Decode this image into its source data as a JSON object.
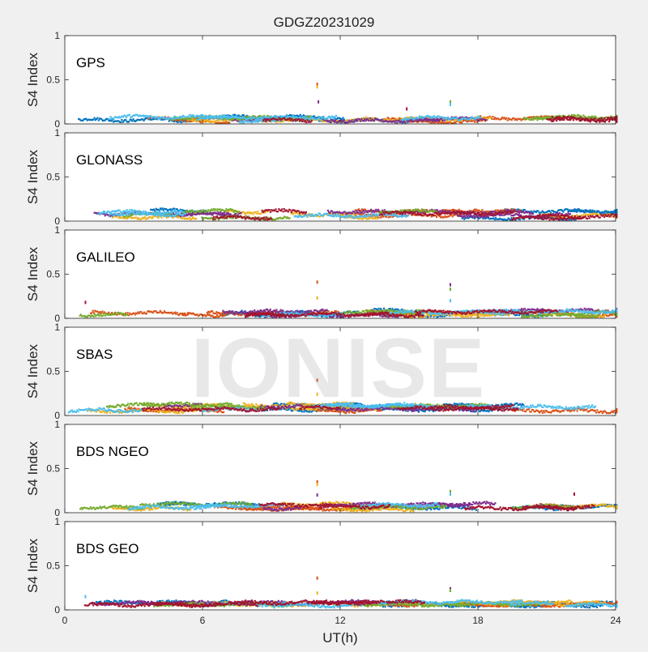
{
  "figure": {
    "title": "GDGZ20231029",
    "xlabel": "UT(h)",
    "watermark": "IONISE"
  },
  "colors": {
    "background": "#f0f0f0",
    "axes_bg": "#ffffff",
    "series": [
      "#0072BD",
      "#D95319",
      "#EDB120",
      "#7E2F8E",
      "#77AC30",
      "#4DBEEE",
      "#A2142F"
    ]
  },
  "chart_data": [
    {
      "type": "scatter",
      "panel_label": "GPS",
      "ylabel": "S4 Index",
      "xlim": [
        0,
        24
      ],
      "ylim": [
        0,
        1
      ],
      "xticks": [
        0,
        6,
        12,
        18,
        24
      ],
      "yticks": [
        0,
        0.5,
        1
      ],
      "baseline_s4": [
        0.03,
        0.13
      ],
      "spikes": [
        {
          "x": 11.0,
          "y": 0.45
        },
        {
          "x": 11.0,
          "y": 0.42
        },
        {
          "x": 11.05,
          "y": 0.25
        },
        {
          "x": 16.8,
          "y": 0.25
        },
        {
          "x": 16.8,
          "y": 0.22
        },
        {
          "x": 14.9,
          "y": 0.17
        }
      ]
    },
    {
      "type": "scatter",
      "panel_label": "GLONASS",
      "ylabel": "S4 Index",
      "xlim": [
        0,
        24
      ],
      "ylim": [
        0,
        1
      ],
      "xticks": [
        0,
        6,
        12,
        18,
        24
      ],
      "yticks": [
        0,
        0.5,
        1
      ],
      "baseline_s4": [
        0.04,
        0.19
      ],
      "spikes": []
    },
    {
      "type": "scatter",
      "panel_label": "GALILEO",
      "ylabel": "S4 Index",
      "xlim": [
        0,
        24
      ],
      "ylim": [
        0,
        1
      ],
      "xticks": [
        0,
        6,
        12,
        18,
        24
      ],
      "yticks": [
        0,
        0.5,
        1
      ],
      "baseline_s4": [
        0.04,
        0.14
      ],
      "spikes": [
        {
          "x": 11.0,
          "y": 0.41
        },
        {
          "x": 11.0,
          "y": 0.23
        },
        {
          "x": 16.8,
          "y": 0.38
        },
        {
          "x": 16.8,
          "y": 0.33
        },
        {
          "x": 16.8,
          "y": 0.2
        },
        {
          "x": 0.9,
          "y": 0.18
        }
      ]
    },
    {
      "type": "scatter",
      "panel_label": "SBAS",
      "ylabel": "S4 Index",
      "xlim": [
        0,
        24
      ],
      "ylim": [
        0,
        1
      ],
      "xticks": [
        0,
        6,
        12,
        18,
        24
      ],
      "yticks": [
        0,
        0.5,
        1
      ],
      "baseline_s4": [
        0.06,
        0.19
      ],
      "spikes": [
        {
          "x": 11.0,
          "y": 0.4
        },
        {
          "x": 11.0,
          "y": 0.24
        }
      ]
    },
    {
      "type": "scatter",
      "panel_label": "BDS NGEO",
      "ylabel": "S4 Index",
      "xlim": [
        0,
        24
      ],
      "ylim": [
        0,
        1
      ],
      "xticks": [
        0,
        6,
        12,
        18,
        24
      ],
      "yticks": [
        0,
        0.5,
        1
      ],
      "baseline_s4": [
        0.04,
        0.16
      ],
      "spikes": [
        {
          "x": 11.0,
          "y": 0.35
        },
        {
          "x": 11.0,
          "y": 0.32
        },
        {
          "x": 11.0,
          "y": 0.2
        },
        {
          "x": 16.8,
          "y": 0.24
        },
        {
          "x": 16.8,
          "y": 0.21
        },
        {
          "x": 22.2,
          "y": 0.21
        }
      ]
    },
    {
      "type": "scatter",
      "panel_label": "BDS GEO",
      "ylabel": "S4 Index",
      "xlim": [
        0,
        24
      ],
      "ylim": [
        0,
        1
      ],
      "xticks": [
        0,
        6,
        12,
        18,
        24
      ],
      "yticks": [
        0,
        0.5,
        1
      ],
      "baseline_s4": [
        0.06,
        0.13
      ],
      "spikes": [
        {
          "x": 11.0,
          "y": 0.36
        },
        {
          "x": 11.0,
          "y": 0.19
        },
        {
          "x": 16.8,
          "y": 0.24
        },
        {
          "x": 16.8,
          "y": 0.22
        },
        {
          "x": 0.9,
          "y": 0.15
        }
      ]
    }
  ]
}
